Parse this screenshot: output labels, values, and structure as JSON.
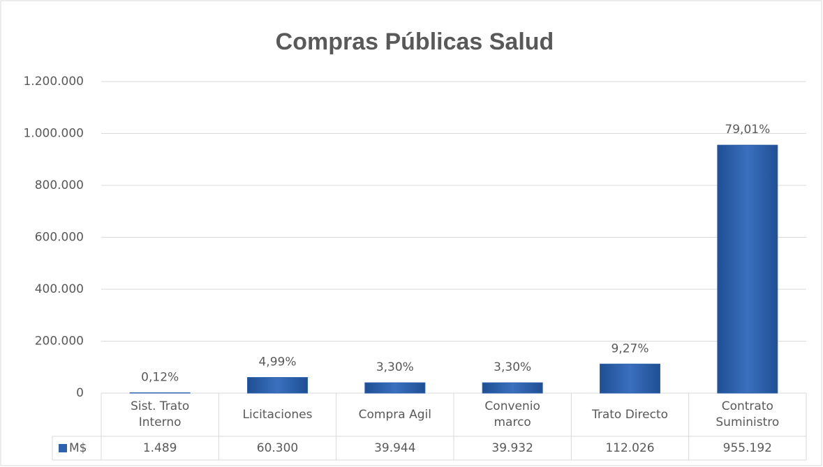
{
  "chart_data": {
    "type": "bar",
    "title": "Compras Públicas Salud",
    "categories": [
      "Sist. Trato\nInterno",
      "Licitaciones",
      "Compra Agil",
      "Convenio\nmarco",
      "Trato Directo",
      "Contrato\nSuministro"
    ],
    "series": [
      {
        "name": "M$",
        "color": "#2f62ad",
        "values": [
          1489,
          60300,
          39944,
          39932,
          112026,
          955192
        ],
        "value_labels": [
          "1.489",
          "60.300",
          "39.944",
          "39.932",
          "112.026",
          "955.192"
        ],
        "shares": [
          0.12,
          4.99,
          3.3,
          3.3,
          9.27,
          79.01
        ],
        "share_labels": [
          "0,12%",
          "4,99%",
          "3,30%",
          "3,30%",
          "9,27%",
          "79,01%"
        ]
      }
    ],
    "ylim": [
      0,
      1200000
    ],
    "yticks": [
      0,
      {
        "value": 200000,
        "label": "200.000"
      },
      {
        "value": 400000,
        "label": "400.000"
      },
      {
        "value": 600000,
        "label": "600.000"
      },
      {
        "value": 800000,
        "label": "800.000"
      },
      {
        "value": 1000000,
        "label": "1.000.000"
      },
      {
        "value": 1200000,
        "label": "1.200.000"
      }
    ],
    "grid": true,
    "legend": "table"
  }
}
